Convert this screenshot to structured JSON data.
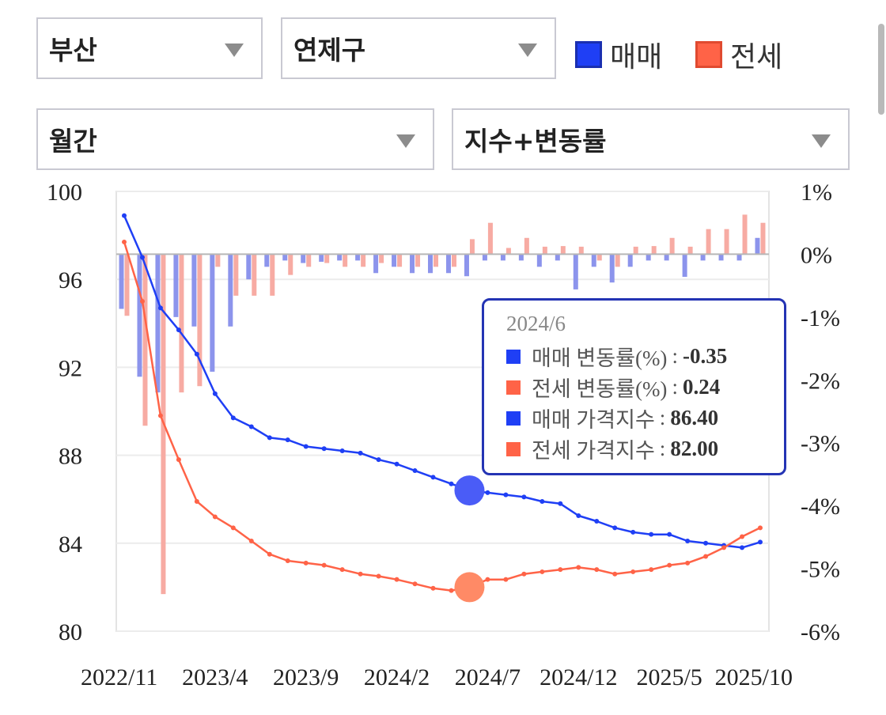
{
  "filters": {
    "region": "부산",
    "district": "연제구",
    "period": "월간",
    "view": "지수+변동률"
  },
  "legend": [
    {
      "label": "매매",
      "color": "#1f3ff5"
    },
    {
      "label": "전세",
      "color": "#ff6347"
    }
  ],
  "tooltip": {
    "title": "2024/6",
    "rows": [
      {
        "label": "매매 변동률(%)",
        "value": "-0.35",
        "color": "#1f3ff5"
      },
      {
        "label": "전세 변동률(%)",
        "value": "0.24",
        "color": "#ff6347"
      },
      {
        "label": "매매 가격지수",
        "value": "86.40",
        "color": "#1f3ff5"
      },
      {
        "label": "전세 가격지수",
        "value": "82.00",
        "color": "#ff6347"
      }
    ]
  },
  "chart_data": {
    "type": "line+bar",
    "x_ticks": [
      "2022/11",
      "2023/4",
      "2023/9",
      "2024/2",
      "2024/7",
      "2024/12",
      "2025/5",
      "2025/10"
    ],
    "y_left": {
      "ticks": [
        "100",
        "96",
        "92",
        "88",
        "84",
        "80"
      ],
      "range": [
        80,
        100
      ]
    },
    "y_right": {
      "ticks": [
        "1%",
        "0%",
        "-1%",
        "-2%",
        "-3%",
        "-4%",
        "-5%",
        "-6%"
      ],
      "range": [
        -6,
        1
      ]
    },
    "n_points": 36,
    "highlight_index": 19,
    "series": [
      {
        "name": "매매",
        "kind": "line",
        "axis": "left",
        "color": "#1f3ff5",
        "values": [
          98.9,
          97.0,
          94.7,
          93.7,
          92.6,
          90.8,
          89.7,
          89.3,
          88.8,
          88.7,
          88.4,
          88.3,
          88.2,
          88.1,
          87.8,
          87.6,
          87.3,
          87.0,
          86.7,
          86.4,
          86.3,
          86.2,
          86.1,
          85.9,
          85.8,
          85.25,
          85.0,
          84.7,
          84.5,
          84.4,
          84.4,
          84.1,
          84.0,
          83.9,
          83.8,
          84.05
        ]
      },
      {
        "name": "전세",
        "kind": "line",
        "axis": "left",
        "color": "#ff6347",
        "values": [
          97.7,
          95.0,
          89.8,
          87.8,
          85.9,
          85.2,
          84.7,
          84.1,
          83.5,
          83.2,
          83.1,
          83.0,
          82.8,
          82.6,
          82.5,
          82.35,
          82.15,
          81.95,
          81.85,
          82.0,
          82.35,
          82.35,
          82.6,
          82.7,
          82.8,
          82.9,
          82.8,
          82.6,
          82.7,
          82.8,
          83.0,
          83.1,
          83.4,
          83.8,
          84.3,
          84.7
        ]
      },
      {
        "name": "매매 변동률",
        "kind": "bar",
        "axis": "right",
        "color": "#8c94ec",
        "values": [
          -0.87,
          -1.95,
          -2.2,
          -1.0,
          -1.15,
          -1.87,
          -1.15,
          -0.4,
          -0.2,
          -0.1,
          -0.14,
          -0.12,
          -0.1,
          -0.1,
          -0.3,
          -0.2,
          -0.3,
          -0.3,
          -0.3,
          -0.35,
          -0.1,
          -0.1,
          -0.1,
          -0.2,
          -0.1,
          -0.56,
          -0.2,
          -0.45,
          -0.2,
          -0.1,
          -0.1,
          -0.36,
          -0.1,
          -0.1,
          -0.1,
          0.26
        ]
      },
      {
        "name": "전세 변동률",
        "kind": "bar",
        "axis": "right",
        "color": "#f7aba3",
        "values": [
          -0.98,
          -2.73,
          -5.41,
          -2.2,
          -2.1,
          -0.2,
          -0.66,
          -0.66,
          -0.66,
          -0.33,
          -0.2,
          -0.14,
          -0.2,
          -0.2,
          -0.14,
          -0.2,
          -0.2,
          -0.2,
          -0.2,
          0.24,
          0.5,
          0.1,
          0.26,
          0.12,
          0.13,
          0.12,
          -0.1,
          -0.2,
          0.12,
          0.13,
          0.26,
          0.12,
          0.4,
          0.4,
          0.63,
          0.5
        ]
      }
    ]
  }
}
